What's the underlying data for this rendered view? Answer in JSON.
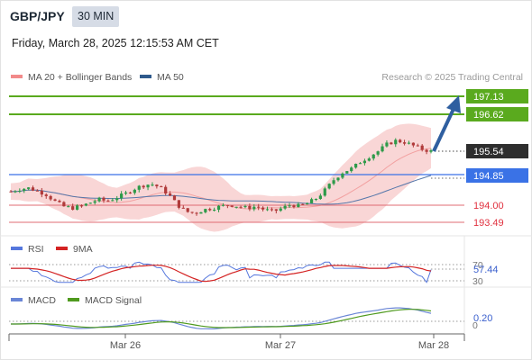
{
  "header": {
    "pair": "GBP/JPY",
    "timeframe": "30 MIN",
    "datetime": "Friday, March 28, 2025 12:15:53 AM CET",
    "legend_ma": "MA 20 + Bollinger Bands",
    "legend_ma50": "MA 50",
    "credit": "Research © 2025 Trading Central"
  },
  "colors": {
    "resistance": "#5aaa1e",
    "support": "#3a72e6",
    "target_line": "#e06b73",
    "arrow": "#2f5fa0",
    "bollinger_fill": "#f9d6d6",
    "ma20": "#f2a0a0",
    "ma50": "#5577aa",
    "bull_candle": "#2d9a49",
    "bear_candle": "#b03a3a",
    "rsi_line": "#5577dd",
    "rsi_ma": "#d42323",
    "macd_line": "#6a86d6",
    "macd_signal": "#4f9a1e"
  },
  "levels": [
    {
      "price": "197.13",
      "style": "resistance"
    },
    {
      "price": "196.62",
      "style": "resistance"
    },
    {
      "price": "195.54",
      "style": "current"
    },
    {
      "price": "194.85",
      "style": "support"
    },
    {
      "price": "194.00",
      "style": "target"
    },
    {
      "price": "193.49",
      "style": "target"
    }
  ],
  "rsi_panel": {
    "legend_rsi": "RSI",
    "legend_ma": "9MA",
    "ticks": [
      "70",
      "30"
    ],
    "value": "57.44"
  },
  "macd_panel": {
    "legend_macd": "MACD",
    "legend_signal": "MACD Signal",
    "tick": "0",
    "value": "0.20"
  },
  "x_axis": {
    "labels": [
      "Mar 26",
      "Mar 27",
      "Mar 28"
    ]
  },
  "chart_data": {
    "type": "candlestick",
    "symbol": "GBP/JPY",
    "interval": "30 MIN",
    "price_levels": [
      197.13,
      196.62,
      195.54,
      194.85,
      194.0,
      193.49
    ],
    "close_path": [
      194.38,
      194.45,
      194.48,
      194.4,
      194.3,
      194.1,
      193.95,
      193.9,
      193.95,
      194.05,
      194.15,
      194.1,
      194.2,
      194.3,
      194.45,
      194.55,
      194.6,
      194.5,
      194.3,
      194.0,
      193.8,
      193.75,
      193.85,
      193.9,
      193.95,
      194.0,
      193.95,
      193.9,
      193.95,
      193.85,
      193.8,
      193.9,
      194.0,
      193.95,
      194.05,
      194.2,
      194.45,
      194.75,
      194.95,
      195.05,
      195.25,
      195.4,
      195.55,
      195.75,
      195.85,
      195.8,
      195.7,
      195.6,
      195.54
    ],
    "rsi_series": {
      "value_last": 57.44,
      "ylim": [
        30,
        70
      ]
    },
    "macd_series": {
      "value_last": 0.2
    }
  }
}
